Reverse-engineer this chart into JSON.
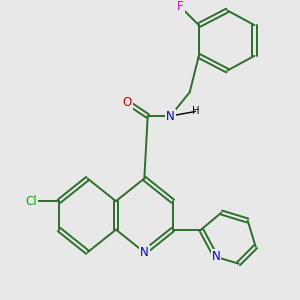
{
  "bg_color": "#e8e8e8",
  "atom_colors": {
    "N": "#0000cc",
    "O": "#cc0000",
    "Cl": "#00aa00",
    "F": "#dd00dd",
    "C": "#000000",
    "H": "#000000"
  },
  "bond_color": "#2d6e2d",
  "bond_lw": 1.4,
  "font_size": 8.5,
  "fig_size": [
    3.0,
    3.0
  ],
  "dpi": 100
}
